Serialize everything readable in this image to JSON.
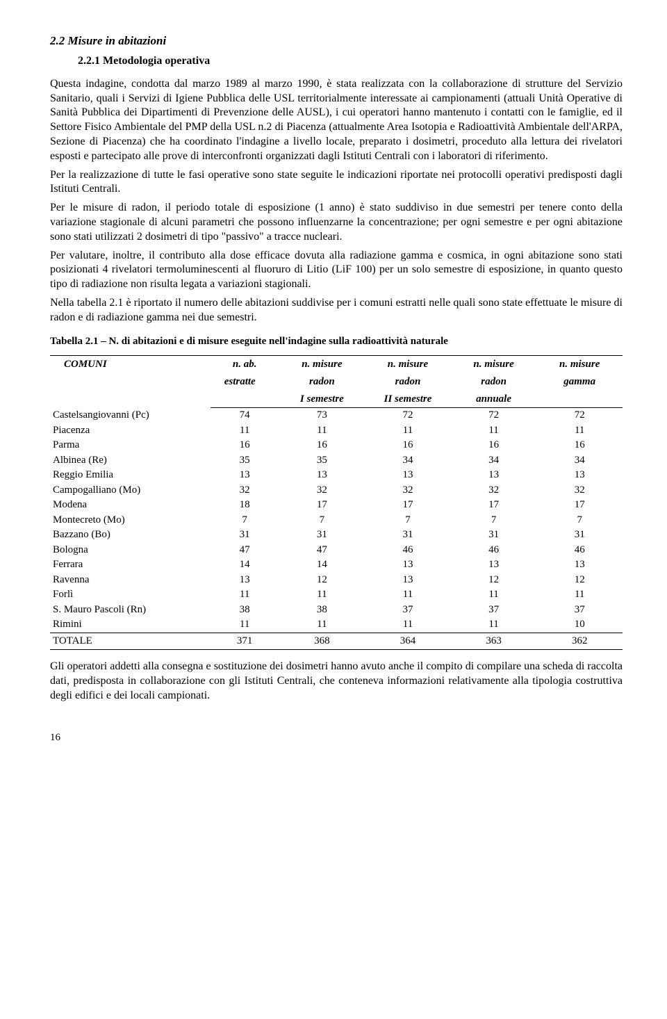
{
  "section": {
    "number_title": "2.2   Misure in abitazioni",
    "sub_number_title": "2.2.1  Metodologia operativa"
  },
  "paragraphs": {
    "p1": "Questa indagine, condotta dal marzo 1989 al marzo 1990, è stata realizzata con la collaborazione di strutture del Servizio Sanitario, quali i Servizi di Igiene Pubblica delle USL territorialmente interessate ai campionamenti (attuali Unità Operative di Sanità Pubblica dei Dipartimenti di Prevenzione delle AUSL), i cui operatori hanno mantenuto i contatti con le famiglie, ed il Settore Fisico Ambientale del PMP della USL n.2 di Piacenza (attualmente Area Isotopia e Radioattività Ambientale dell'ARPA, Sezione di Piacenza) che ha coordinato l'indagine a livello locale, preparato i dosimetri, proceduto alla lettura dei rivelatori esposti e partecipato alle prove di interconfronti organizzati dagli Istituti Centrali con i laboratori di riferimento.",
    "p2": "Per la realizzazione di tutte le fasi operative sono state seguite le indicazioni riportate nei protocolli operativi predisposti dagli Istituti Centrali.",
    "p3": "Per le misure di radon, il periodo totale di esposizione (1 anno) è stato suddiviso in due semestri per tenere conto della variazione stagionale di alcuni parametri che possono influenzarne la concentrazione; per ogni semestre e per ogni abitazione sono stati utilizzati 2 dosimetri di tipo \"passivo\" a tracce nucleari.",
    "p4": "Per valutare, inoltre, il contributo alla dose efficace dovuta alla radiazione gamma e cosmica, in ogni abitazione sono stati posizionati 4 rivelatori termoluminescenti al fluoruro di Litio (LiF 100) per un solo semestre di esposizione, in quanto questo tipo di radiazione non risulta legata a variazioni stagionali.",
    "p5": "Nella tabella 2.1 è riportato il numero delle abitazioni suddivise per i comuni estratti nelle quali sono state effettuate le misure di radon e di radiazione gamma nei due semestri.",
    "after_table": "Gli operatori addetti alla consegna e sostituzione dei dosimetri hanno avuto anche il compito di compilare una scheda di raccolta dati, predisposta in collaborazione con gli Istituti Centrali, che conteneva informazioni relativamente alla tipologia costruttiva degli edifici e dei locali campionati."
  },
  "table": {
    "caption": "Tabella 2.1 – N. di abitazioni e di misure eseguite nell'indagine sulla radioattività naturale",
    "columns": {
      "c0": "COMUNI",
      "c1a": "n. ab.",
      "c1b": "estratte",
      "c2a": "n. misure",
      "c2b": "radon",
      "c2c": "I semestre",
      "c3a": "n. misure",
      "c3b": "radon",
      "c3c": "II semestre",
      "c4a": "n. misure",
      "c4b": "radon",
      "c4c": "annuale",
      "c5a": "n. misure",
      "c5b": "gamma"
    },
    "col_widths": [
      "28%",
      "12%",
      "15%",
      "15%",
      "15%",
      "15%"
    ],
    "rows": [
      {
        "name": "Castelsangiovanni (Pc)",
        "v": [
          74,
          73,
          72,
          72,
          72
        ]
      },
      {
        "name": "Piacenza",
        "v": [
          11,
          11,
          11,
          11,
          11
        ]
      },
      {
        "name": "Parma",
        "v": [
          16,
          16,
          16,
          16,
          16
        ]
      },
      {
        "name": "Albinea (Re)",
        "v": [
          35,
          35,
          34,
          34,
          34
        ]
      },
      {
        "name": "Reggio Emilia",
        "v": [
          13,
          13,
          13,
          13,
          13
        ]
      },
      {
        "name": "Campogalliano (Mo)",
        "v": [
          32,
          32,
          32,
          32,
          32
        ]
      },
      {
        "name": "Modena",
        "v": [
          18,
          17,
          17,
          17,
          17
        ]
      },
      {
        "name": "Montecreto (Mo)",
        "v": [
          7,
          7,
          7,
          7,
          7
        ]
      },
      {
        "name": "Bazzano (Bo)",
        "v": [
          31,
          31,
          31,
          31,
          31
        ]
      },
      {
        "name": "Bologna",
        "v": [
          47,
          47,
          46,
          46,
          46
        ]
      },
      {
        "name": "Ferrara",
        "v": [
          14,
          14,
          13,
          13,
          13
        ]
      },
      {
        "name": "Ravenna",
        "v": [
          13,
          12,
          13,
          12,
          12
        ]
      },
      {
        "name": "Forlì",
        "v": [
          11,
          11,
          11,
          11,
          11
        ]
      },
      {
        "name": "S. Mauro Pascoli (Rn)",
        "v": [
          38,
          38,
          37,
          37,
          37
        ]
      },
      {
        "name": "Rimini",
        "v": [
          11,
          11,
          11,
          11,
          10
        ]
      }
    ],
    "total": {
      "name": "TOTALE",
      "v": [
        371,
        368,
        364,
        363,
        362
      ]
    }
  },
  "page_number": "16"
}
